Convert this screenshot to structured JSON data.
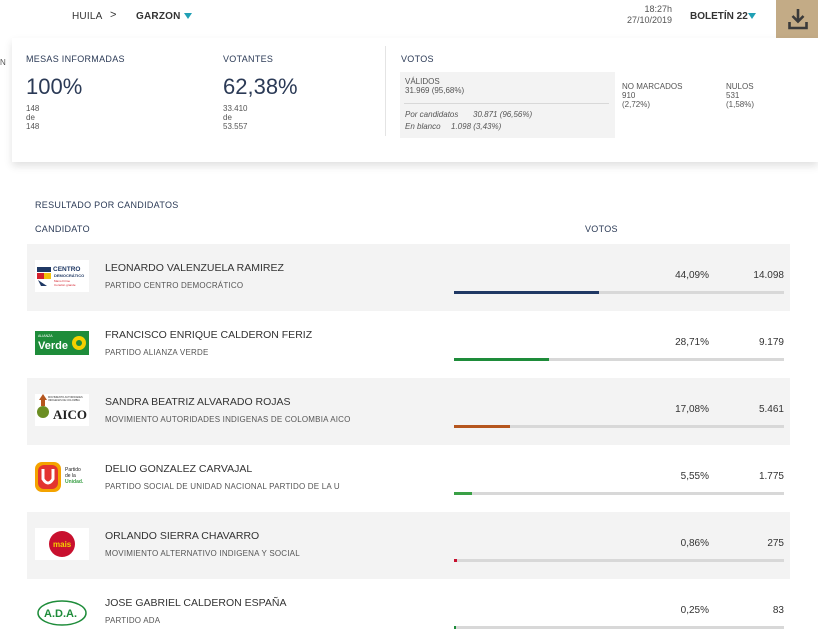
{
  "header": {
    "department": "HUILA",
    "separator": ">",
    "municipality": "GARZON",
    "time": "18:27h",
    "date": "27/10/2019",
    "bulletin": "BOLETÍN 22",
    "accent_color": "#20a0b5",
    "download_bg": "#c3ab86",
    "download_icon": "download-icon"
  },
  "summary": {
    "mesas": {
      "label": "MESAS INFORMADAS",
      "percent": "100%",
      "l1": "148",
      "l2": "de",
      "l3": "148"
    },
    "votantes": {
      "label": "VOTANTES",
      "percent": "62,38%",
      "l1": "33.410",
      "l2": "de",
      "l3": "53.557"
    },
    "votos": {
      "label": "VOTOS",
      "validos_label": "VÁLIDOS",
      "validos_value": "31.969 (95,68%)",
      "por_candidatos": "Por candidatos",
      "por_candidatos_value": "30.871 (96,56%)",
      "en_blanco": "En blanco",
      "en_blanco_value": "1.098 (3,43%)",
      "no_marcados_label": "NO MARCADOS",
      "no_marcados_value": "910",
      "no_marcados_pct": "(2,72%)",
      "nulos_label": "NULOS",
      "nulos_value": "531",
      "nulos_pct": "(1,58%)"
    }
  },
  "results": {
    "title": "RESULTADO POR CANDIDATOS",
    "col_candidate": "CANDIDATO",
    "col_votes": "VOTOS",
    "candidates": [
      {
        "name": "LEONARDO VALENZUELA RAMIREZ",
        "party": "PARTIDO CENTRO DEMOCRÁTICO",
        "percent": "44,09%",
        "votes": "14.098",
        "share": 0.4409,
        "color": "#1f3864",
        "logo": "centro-democratico-logo",
        "logo_text": "CENTRO DEMOCRÁTICO",
        "logo_sub": "Mano Firme Corazón grande"
      },
      {
        "name": "FRANCISCO ENRIQUE CALDERON FERIZ",
        "party": "PARTIDO ALIANZA VERDE",
        "percent": "28,71%",
        "votes": "9.179",
        "share": 0.2871,
        "color": "#1e8c3a",
        "logo": "alianza-verde-logo",
        "logo_text": "Verde",
        "logo_sub": "ALIANZA"
      },
      {
        "name": "SANDRA BEATRIZ ALVARADO ROJAS",
        "party": "MOVIMIENTO AUTORIDADES INDIGENAS DE COLOMBIA AICO",
        "percent": "17,08%",
        "votes": "5.461",
        "share": 0.1708,
        "color": "#b5561e",
        "logo": "aico-logo",
        "logo_text": "AICO",
        "logo_sub": "MOVIMIENTO AUTORIDADES INDIGENAS DE COLOMBIA"
      },
      {
        "name": "DELIO GONZALEZ CARVAJAL",
        "party": "PARTIDO SOCIAL DE UNIDAD NACIONAL PARTIDO DE LA U",
        "percent": "5,55%",
        "votes": "1.775",
        "share": 0.0555,
        "color": "#3aa046",
        "logo": "partido-de-la-u-logo",
        "logo_text": "U",
        "logo_sub": "Partido de la Unidad"
      },
      {
        "name": "ORLANDO SIERRA CHAVARRO",
        "party": "MOVIMIENTO ALTERNATIVO INDIGENA Y SOCIAL",
        "percent": "0,86%",
        "votes": "275",
        "share": 0.0086,
        "color": "#c8102e",
        "logo": "mais-logo",
        "logo_text": "mais",
        "logo_sub": ""
      },
      {
        "name": "JOSE GABRIEL CALDERON ESPAÑA",
        "party": "PARTIDO ADA",
        "percent": "0,25%",
        "votes": "83",
        "share": 0.0025,
        "color": "#1e8c3a",
        "logo": "ada-logo",
        "logo_text": "A.D.A.",
        "logo_sub": ""
      }
    ]
  }
}
